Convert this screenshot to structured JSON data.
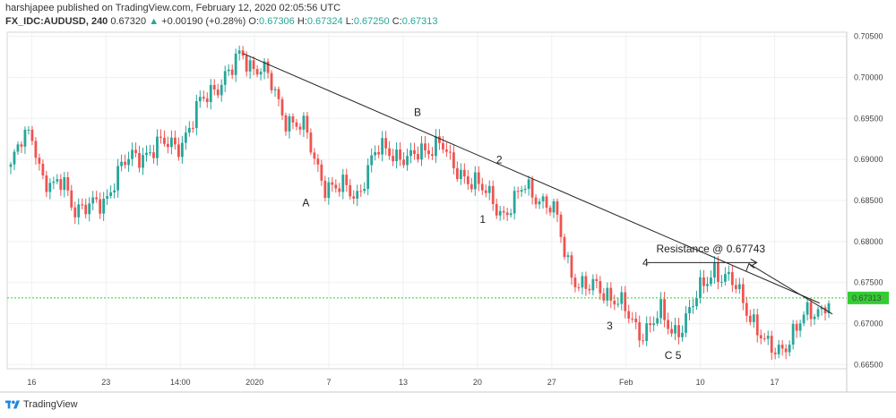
{
  "header": {
    "line1": "harshjapee published on TradingView.com, February 12, 2020 02:05:56 UTC",
    "symbol": "FX_IDC:AUDUSD, 240",
    "price": "0.67320",
    "arrow": "▲",
    "change": "+0.00190 (+0.28%)",
    "o_label": "O:",
    "o_val": "0.67306",
    "h_label": "H:",
    "h_val": "0.67324",
    "l_label": "L:",
    "l_val": "0.67250",
    "c_label": "C:",
    "c_val": "0.67313"
  },
  "footer": {
    "brand": "TradingView"
  },
  "colors": {
    "up": "#26a69a",
    "down": "#ef5350",
    "price_line": "#33cc33"
  },
  "chart_data": {
    "type": "candlestick",
    "title": "FX_IDC:AUDUSD, 240",
    "ylim": [
      0.6645,
      0.7055
    ],
    "y_ticks": [
      0.705,
      0.7,
      0.695,
      0.69,
      0.685,
      0.68,
      0.675,
      0.67,
      0.665
    ],
    "y_tick_labels": [
      "0.70500",
      "0.70000",
      "0.69500",
      "0.69000",
      "0.68500",
      "0.68000",
      "0.67500",
      "0.67000",
      "0.66500"
    ],
    "x_tick_labels": [
      "16",
      "23",
      "14:00",
      "2020",
      "7",
      "13",
      "20",
      "27",
      "Feb",
      "10",
      "17"
    ],
    "last_price": 0.67313,
    "last_price_label": "0.67313",
    "waypoints": [
      [
        0.689,
        0.692,
        0.6935,
        0.688,
        0.686,
        0.6875,
        0.6845,
        0.6838,
        0.6842,
        0.6852,
        0.688,
        0.6895,
        0.6905,
        0.691,
        0.6915,
        0.6918,
        0.692,
        0.6935,
        0.6965,
        0.6985,
        0.6995,
        0.7005,
        0.703,
        0.7015,
        0.701,
        0.6985,
        0.6955,
        0.6945,
        0.6935,
        0.69,
        0.687,
        0.6862,
        0.6865,
        0.6858,
        0.6885,
        0.691,
        0.6915,
        0.6905,
        0.6895,
        0.691,
        0.6918,
        0.692,
        0.689,
        0.6885,
        0.6875,
        0.686,
        0.685,
        0.6835,
        0.6845,
        0.6868,
        0.686,
        0.6845,
        0.683,
        0.678,
        0.675,
        0.674,
        0.6745,
        0.6738,
        0.6725,
        0.6705,
        0.669,
        0.67,
        0.671,
        0.669,
        0.67,
        0.672,
        0.6745,
        0.677,
        0.6755,
        0.6745,
        0.6725,
        0.67,
        0.667,
        0.6665,
        0.668,
        0.6695,
        0.671,
        0.6718,
        0.673
      ]
    ],
    "annotations": [
      {
        "text": "A",
        "x_pos": 0.3515,
        "y": 0.6843
      },
      {
        "text": "B",
        "x_pos": 0.4845,
        "y": 0.6953
      },
      {
        "text": "1",
        "x_pos": 0.5628,
        "y": 0.6823
      },
      {
        "text": "2",
        "x_pos": 0.5826,
        "y": 0.6895
      },
      {
        "text": "3",
        "x_pos": 0.7141,
        "y": 0.6693
      },
      {
        "text": "4",
        "x_pos": 0.7567,
        "y": 0.677
      },
      {
        "text": "C 5",
        "x_pos": 0.7831,
        "y": 0.6657
      },
      {
        "text": "Resistance @ 0.67743",
        "x_pos": 0.7732,
        "y": 0.6787
      }
    ],
    "trendline": {
      "from": [
        0.2811,
        0.7029
      ],
      "to": [
        0.9677,
        0.6725
      ]
    },
    "resistance_price": 0.67743,
    "resistance_segment": {
      "from_x_pos": 0.7622,
      "to_x_pos": 0.8929
    }
  }
}
